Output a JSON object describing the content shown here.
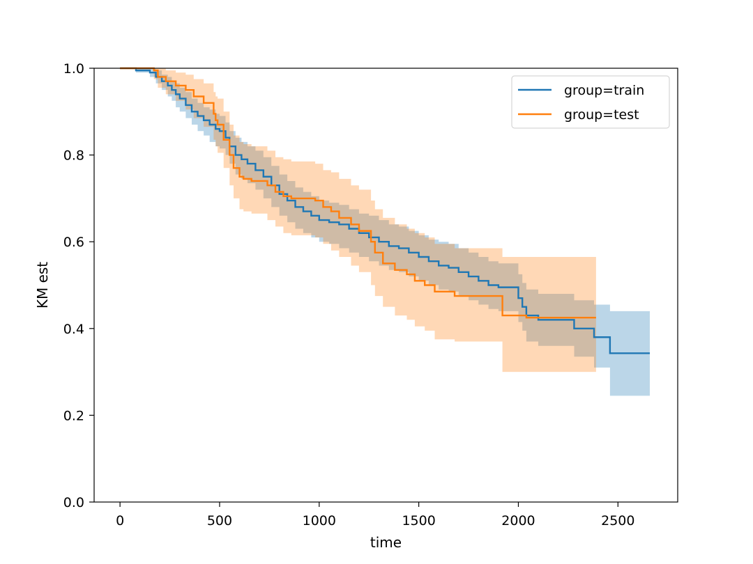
{
  "chart_data": {
    "type": "line",
    "step": true,
    "xlabel": "time",
    "ylabel": "KM est",
    "xlim": [
      -130,
      2800
    ],
    "ylim": [
      0.0,
      1.0
    ],
    "xticks": [
      0,
      500,
      1000,
      1500,
      2000,
      2500
    ],
    "yticks": [
      0.0,
      0.2,
      0.4,
      0.6,
      0.8,
      1.0
    ],
    "xtick_labels": [
      "0",
      "500",
      "1000",
      "1500",
      "2000",
      "2500"
    ],
    "ytick_labels": [
      "0.0",
      "0.2",
      "0.4",
      "0.6",
      "0.8",
      "1.0"
    ],
    "grid": false,
    "legend_position": "upper right",
    "series": [
      {
        "name": "group=train",
        "color": "#1f77b4",
        "band_color": "#1f77b4",
        "band_opacity": 0.3,
        "x": [
          0,
          80,
          150,
          180,
          210,
          240,
          260,
          280,
          300,
          330,
          360,
          390,
          420,
          450,
          480,
          500,
          530,
          550,
          580,
          610,
          640,
          680,
          720,
          760,
          800,
          840,
          880,
          920,
          960,
          1000,
          1050,
          1100,
          1150,
          1200,
          1250,
          1300,
          1350,
          1400,
          1450,
          1500,
          1550,
          1600,
          1650,
          1700,
          1750,
          1800,
          1850,
          1900,
          1950,
          2000,
          2020,
          2040,
          2100,
          2200,
          2280,
          2380,
          2460,
          2660
        ],
        "y": [
          1.0,
          0.995,
          0.99,
          0.98,
          0.97,
          0.96,
          0.95,
          0.94,
          0.93,
          0.915,
          0.9,
          0.89,
          0.88,
          0.87,
          0.86,
          0.855,
          0.84,
          0.82,
          0.8,
          0.79,
          0.78,
          0.765,
          0.75,
          0.73,
          0.71,
          0.695,
          0.68,
          0.67,
          0.66,
          0.65,
          0.645,
          0.64,
          0.63,
          0.62,
          0.61,
          0.6,
          0.59,
          0.585,
          0.575,
          0.565,
          0.555,
          0.545,
          0.54,
          0.53,
          0.52,
          0.51,
          0.5,
          0.495,
          0.495,
          0.47,
          0.45,
          0.43,
          0.42,
          0.42,
          0.4,
          0.38,
          0.343,
          0.343
        ],
        "y_lower": [
          1.0,
          0.99,
          0.98,
          0.965,
          0.95,
          0.935,
          0.925,
          0.91,
          0.9,
          0.885,
          0.87,
          0.855,
          0.845,
          0.83,
          0.82,
          0.815,
          0.8,
          0.78,
          0.755,
          0.745,
          0.735,
          0.72,
          0.7,
          0.68,
          0.66,
          0.645,
          0.63,
          0.62,
          0.61,
          0.6,
          0.595,
          0.585,
          0.575,
          0.565,
          0.555,
          0.545,
          0.535,
          0.53,
          0.52,
          0.51,
          0.5,
          0.49,
          0.485,
          0.475,
          0.465,
          0.455,
          0.445,
          0.44,
          0.44,
          0.415,
          0.395,
          0.37,
          0.36,
          0.36,
          0.335,
          0.31,
          0.245,
          0.245
        ],
        "y_upper": [
          1.0,
          1.0,
          1.0,
          0.995,
          0.985,
          0.98,
          0.97,
          0.965,
          0.955,
          0.945,
          0.93,
          0.92,
          0.91,
          0.905,
          0.895,
          0.89,
          0.875,
          0.855,
          0.84,
          0.83,
          0.82,
          0.81,
          0.795,
          0.775,
          0.755,
          0.74,
          0.725,
          0.715,
          0.705,
          0.695,
          0.69,
          0.685,
          0.675,
          0.665,
          0.66,
          0.65,
          0.64,
          0.635,
          0.625,
          0.615,
          0.605,
          0.6,
          0.595,
          0.585,
          0.575,
          0.565,
          0.555,
          0.55,
          0.55,
          0.525,
          0.505,
          0.49,
          0.48,
          0.48,
          0.465,
          0.455,
          0.44,
          0.44
        ]
      },
      {
        "name": "group=test",
        "color": "#ff7f0e",
        "band_color": "#ff7f0e",
        "band_opacity": 0.3,
        "x": [
          0,
          100,
          170,
          190,
          230,
          280,
          330,
          370,
          420,
          470,
          480,
          490,
          500,
          520,
          550,
          570,
          600,
          620,
          660,
          700,
          740,
          780,
          820,
          860,
          920,
          980,
          1020,
          1060,
          1100,
          1160,
          1200,
          1260,
          1280,
          1320,
          1380,
          1440,
          1480,
          1530,
          1580,
          1680,
          1920,
          2040,
          2390
        ],
        "y": [
          1.0,
          1.0,
          0.995,
          0.98,
          0.97,
          0.96,
          0.95,
          0.935,
          0.92,
          0.895,
          0.88,
          0.87,
          0.87,
          0.835,
          0.8,
          0.77,
          0.75,
          0.745,
          0.74,
          0.74,
          0.73,
          0.715,
          0.705,
          0.7,
          0.7,
          0.695,
          0.68,
          0.67,
          0.655,
          0.64,
          0.625,
          0.6,
          0.575,
          0.55,
          0.535,
          0.525,
          0.51,
          0.5,
          0.485,
          0.475,
          0.43,
          0.425,
          0.425
        ],
        "y_lower": [
          1.0,
          1.0,
          0.975,
          0.955,
          0.94,
          0.925,
          0.905,
          0.885,
          0.865,
          0.835,
          0.82,
          0.805,
          0.805,
          0.77,
          0.73,
          0.7,
          0.675,
          0.67,
          0.665,
          0.665,
          0.65,
          0.635,
          0.62,
          0.615,
          0.615,
          0.61,
          0.595,
          0.58,
          0.565,
          0.545,
          0.53,
          0.5,
          0.475,
          0.45,
          0.43,
          0.42,
          0.405,
          0.395,
          0.375,
          0.37,
          0.3,
          0.3,
          0.3
        ],
        "y_upper": [
          1.0,
          1.0,
          1.0,
          1.0,
          0.995,
          0.99,
          0.985,
          0.975,
          0.965,
          0.945,
          0.935,
          0.93,
          0.93,
          0.9,
          0.87,
          0.845,
          0.83,
          0.825,
          0.82,
          0.82,
          0.81,
          0.795,
          0.79,
          0.785,
          0.785,
          0.78,
          0.765,
          0.76,
          0.745,
          0.73,
          0.72,
          0.695,
          0.675,
          0.655,
          0.64,
          0.63,
          0.62,
          0.61,
          0.595,
          0.585,
          0.565,
          0.565,
          0.565
        ]
      }
    ]
  }
}
